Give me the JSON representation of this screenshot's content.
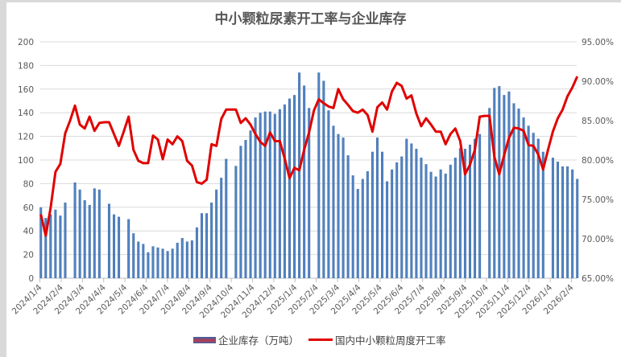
{
  "chart_data": {
    "type": "bar+line",
    "title": "中小颗粒尿素开工率与企业库存",
    "x_tick_labels": [
      "2024/1/4",
      "2024/2/4",
      "2024/3/4",
      "2024/4/4",
      "2024/5/4",
      "2024/6/4",
      "2024/7/4",
      "2024/8/4",
      "2024/9/4",
      "2024/10/4",
      "2024/11/4",
      "2024/12/4",
      "2025/1/4",
      "2025/2/4",
      "2025/3/4",
      "2025/4/4",
      "2025/5/4",
      "2025/6/4",
      "2025/7/4",
      "2025/8/4",
      "2025/9/4",
      "2025/10/4",
      "2025/11/4",
      "2025/12/4",
      "2026/1/4",
      "2026/2/4"
    ],
    "left_axis": {
      "min": 0,
      "max": 200,
      "step": 20,
      "ticks": [
        "0",
        "20",
        "40",
        "60",
        "80",
        "100",
        "120",
        "140",
        "160",
        "180",
        "200"
      ]
    },
    "right_axis": {
      "min": 65,
      "max": 95,
      "step": 5,
      "ticks": [
        "65.00%",
        "70.00%",
        "75.00%",
        "80.00%",
        "85.00%",
        "90.00%",
        "95.00%"
      ]
    },
    "grid": true,
    "legend_position": "bottom",
    "series": [
      {
        "name": "企业库存（万吨）",
        "type": "bar",
        "axis": "left",
        "color": "#4a78b4",
        "values": [
          60,
          51,
          54,
          58,
          53,
          64,
          null,
          81,
          75,
          66,
          62,
          76,
          75,
          null,
          63,
          54,
          52,
          null,
          50,
          38,
          31,
          29,
          22,
          27,
          26,
          25,
          23,
          25,
          30,
          34,
          31,
          32,
          43,
          55,
          55,
          64,
          75,
          85,
          101,
          null,
          95,
          112,
          117,
          125,
          136,
          140,
          141,
          141,
          139,
          143,
          147,
          152,
          155,
          174,
          163,
          144,
          null,
          174,
          167,
          142,
          129,
          122,
          119,
          104,
          87,
          75.5,
          84,
          90.5,
          107,
          119,
          107,
          82,
          92,
          98,
          103,
          118,
          114,
          109.5,
          102,
          96.5,
          90,
          86,
          92,
          88.5,
          96,
          102,
          110,
          109.5,
          113,
          118,
          122,
          null,
          144,
          161,
          162.5,
          155,
          158,
          148,
          143.5,
          136,
          129,
          123,
          118,
          107,
          null,
          102,
          98.6,
          94.6,
          94.6,
          92,
          84
        ]
      },
      {
        "name": "国内中小颗粒周度开工率",
        "type": "line",
        "axis": "right",
        "color": "#e00000",
        "values": [
          73.1,
          70.4,
          73.9,
          78.5,
          79.5,
          83.4,
          85.0,
          86.9,
          84.5,
          84.0,
          85.5,
          83.7,
          84.7,
          84.8,
          84.8,
          83.3,
          81.8,
          83.6,
          85.5,
          81.3,
          79.9,
          79.6,
          79.6,
          83.1,
          82.6,
          80.1,
          82.6,
          82.0,
          83.0,
          82.4,
          79.9,
          79.3,
          77.2,
          77.0,
          77.5,
          82.0,
          81.8,
          85.2,
          86.4,
          86.4,
          86.4,
          84.7,
          85.3,
          84.5,
          83.3,
          82.3,
          81.8,
          83.5,
          82.4,
          82.4,
          80.2,
          77.7,
          79.0,
          78.7,
          81.3,
          83.5,
          86.3,
          87.7,
          87.2,
          86.8,
          86.6,
          89.0,
          87.7,
          87.0,
          86.2,
          86.0,
          86.4,
          85.7,
          83.6,
          86.7,
          87.3,
          86.4,
          88.7,
          89.8,
          89.4,
          87.8,
          88.2,
          85.9,
          84.3,
          85.3,
          84.5,
          83.6,
          83.6,
          82.0,
          83.3,
          84.0,
          82.4,
          78.2,
          79.4,
          81.3,
          85.5,
          85.6,
          85.6,
          80.4,
          78.2,
          80.6,
          82.8,
          84.1,
          84.0,
          83.7,
          81.9,
          81.8,
          80.7,
          78.8,
          81.3,
          83.6,
          85.3,
          86.4,
          88.1,
          89.2,
          90.6
        ]
      }
    ]
  }
}
